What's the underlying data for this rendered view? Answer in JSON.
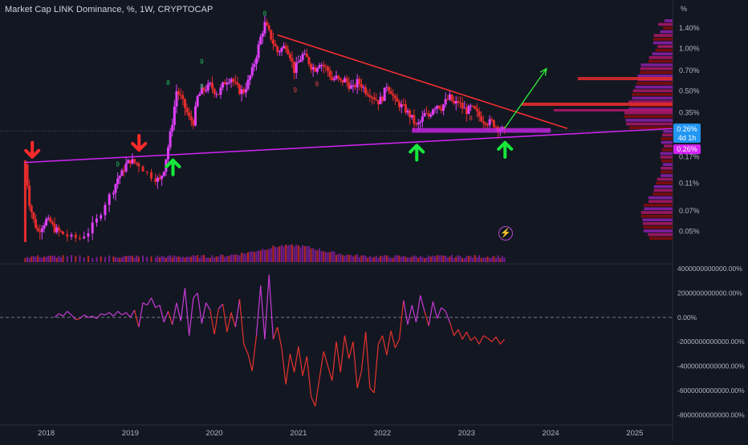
{
  "header": {
    "title": "Market Cap LINK Dominance, %, 1W, CRYPTOCAP"
  },
  "colors": {
    "background": "#131722",
    "up": "#e040fb",
    "down": "#e52c2c",
    "trendline_resistance": "#ff3030",
    "trendline_support": "#d524f5",
    "arrow_down": "#ff2a2a",
    "arrow_up": "#17e83a",
    "projection": "#2ef03c",
    "current_price_label": "#2196f3",
    "support_label": "#d524f5",
    "volume_profile": [
      "#8e1fb0",
      "#b0166a",
      "#8b0a0a"
    ]
  },
  "price_axis": {
    "unit_label": "%",
    "scale": "log",
    "ticks": [
      "1.40%",
      "1.00%",
      "0.70%",
      "0.50%",
      "0.35%",
      "0.17%",
      "0.11%",
      "0.07%",
      "0.05%"
    ],
    "current_price_label": "0.26%",
    "current_price_countdown": "4d 1h",
    "support_price_label": "0.26%"
  },
  "time_axis": {
    "ticks": [
      "2018",
      "2019",
      "2020",
      "2021",
      "2022",
      "2023",
      "2024",
      "2025"
    ]
  },
  "oscillator_axis": {
    "ticks": [
      "4000000000000.00%",
      "2000000000000.00%",
      "0.00%",
      "-2000000000000.00%",
      "-4000000000000.00%",
      "-6000000000000.00%",
      "-8000000000000.00%"
    ]
  },
  "td_counts": [
    {
      "label": "8",
      "color": "green",
      "year": 2020.6,
      "price": 1.72
    },
    {
      "label": "9",
      "color": "green",
      "year": 2019.85,
      "price": 0.78
    },
    {
      "label": "8",
      "color": "green",
      "year": 2019.45,
      "price": 0.55
    },
    {
      "label": "8",
      "color": "green",
      "year": 2019.85,
      "price": 0.52
    },
    {
      "label": "9",
      "color": "green",
      "year": 2018.85,
      "price": 0.145
    },
    {
      "label": "9",
      "color": "red",
      "year": 2020.96,
      "price": 0.49
    },
    {
      "label": "8",
      "color": "red",
      "year": 2021.22,
      "price": 0.54
    },
    {
      "label": "8",
      "color": "red",
      "year": 2023.05,
      "price": 0.31
    }
  ],
  "chart_data": [
    {
      "type": "line",
      "title": "Market Cap LINK Dominance, %, 1W, CRYPTOCAP",
      "xlabel": "",
      "ylabel": "%",
      "x_unit": "year",
      "yscale": "log",
      "ylim": [
        0.042,
        1.75
      ],
      "xlim": [
        2017.45,
        2025.45
      ],
      "grid": false,
      "series": [
        {
          "x": [
            2017.75,
            2017.8,
            2017.85,
            2017.9,
            2017.95,
            2018.0,
            2018.05,
            2018.1,
            2018.15,
            2018.2,
            2018.3,
            2018.4,
            2018.5,
            2018.6,
            2018.7,
            2018.8,
            2018.85,
            2018.9,
            2018.95,
            2019.0,
            2019.05,
            2019.1,
            2019.2,
            2019.3,
            2019.35,
            2019.4,
            2019.45,
            2019.5,
            2019.55,
            2019.6,
            2019.65,
            2019.7,
            2019.75,
            2019.8,
            2019.85,
            2019.9,
            2019.95,
            2020.0,
            2020.05,
            2020.1,
            2020.15,
            2020.2,
            2020.25,
            2020.3,
            2020.35,
            2020.4,
            2020.45,
            2020.5,
            2020.55,
            2020.6,
            2020.65,
            2020.7,
            2020.75,
            2020.8,
            2020.85,
            2020.9,
            2020.95,
            2021.0,
            2021.05,
            2021.1,
            2021.15,
            2021.2,
            2021.25,
            2021.3,
            2021.35,
            2021.4,
            2021.45,
            2021.5,
            2021.55,
            2021.6,
            2021.65,
            2021.7,
            2021.75,
            2021.8,
            2021.85,
            2021.9,
            2021.95,
            2022.0,
            2022.05,
            2022.1,
            2022.15,
            2022.2,
            2022.25,
            2022.3,
            2022.35,
            2022.4,
            2022.45,
            2022.5,
            2022.55,
            2022.6,
            2022.65,
            2022.7,
            2022.75,
            2022.8,
            2022.85,
            2022.9,
            2022.95,
            2023.0,
            2023.05,
            2023.1,
            2023.15,
            2023.2,
            2023.25,
            2023.3,
            2023.35,
            2023.4,
            2023.45
          ],
          "y": [
            0.15,
            0.08,
            0.06,
            0.05,
            0.055,
            0.06,
            0.058,
            0.052,
            0.05,
            0.048,
            0.045,
            0.045,
            0.05,
            0.06,
            0.08,
            0.1,
            0.12,
            0.13,
            0.15,
            0.16,
            0.155,
            0.15,
            0.13,
            0.12,
            0.115,
            0.14,
            0.2,
            0.3,
            0.5,
            0.45,
            0.38,
            0.32,
            0.3,
            0.45,
            0.5,
            0.52,
            0.55,
            0.5,
            0.48,
            0.55,
            0.6,
            0.62,
            0.55,
            0.5,
            0.5,
            0.58,
            0.7,
            0.9,
            1.2,
            1.5,
            1.3,
            1.1,
            0.95,
            1.0,
            1.05,
            0.9,
            0.7,
            0.8,
            0.9,
            0.85,
            0.75,
            0.72,
            0.8,
            0.75,
            0.7,
            0.6,
            0.62,
            0.58,
            0.6,
            0.55,
            0.52,
            0.58,
            0.55,
            0.5,
            0.48,
            0.45,
            0.42,
            0.45,
            0.55,
            0.5,
            0.42,
            0.4,
            0.38,
            0.35,
            0.32,
            0.28,
            0.3,
            0.34,
            0.33,
            0.38,
            0.4,
            0.38,
            0.42,
            0.45,
            0.4,
            0.42,
            0.38,
            0.36,
            0.38,
            0.36,
            0.33,
            0.31,
            0.3,
            0.3,
            0.28,
            0.27,
            0.26
          ]
        }
      ],
      "annotations": {
        "resistance_trendline": {
          "from": [
            2020.75,
            1.25
          ],
          "to": [
            2024.2,
            0.27
          ]
        },
        "support_trendline": {
          "from": [
            2017.75,
            0.155
          ],
          "to": [
            2025.45,
            0.27
          ]
        },
        "support_zone": {
          "x": [
            2022.35,
            2024.0
          ],
          "y": [
            0.252,
            0.272
          ]
        },
        "down_arrows": [
          [
            2017.7,
            0.165
          ],
          [
            2018.97,
            0.185
          ]
        ],
        "up_arrows": [
          [
            2019.45,
            0.165
          ],
          [
            2022.35,
            0.21
          ],
          [
            2023.4,
            0.22
          ]
        ],
        "projection_arrow": {
          "from": [
            2023.45,
            0.27
          ],
          "to": [
            2023.95,
            0.72
          ]
        }
      }
    },
    {
      "type": "line",
      "title": "",
      "xlabel": "",
      "ylabel": "",
      "x_unit": "year",
      "y_unit": "%",
      "ylim": [
        -8700000000000,
        4200000000000
      ],
      "grid": false,
      "zero_line": "dashed",
      "series": [
        {
          "x": [
            2018.1,
            2018.15,
            2018.2,
            2018.25,
            2018.3,
            2018.35,
            2018.4,
            2018.45,
            2018.5,
            2018.55,
            2018.6,
            2018.65,
            2018.7,
            2018.75,
            2018.8,
            2018.85,
            2018.9,
            2018.95,
            2019.0,
            2019.05,
            2019.1,
            2019.15,
            2019.2,
            2019.25,
            2019.3,
            2019.35,
            2019.4,
            2019.45,
            2019.5,
            2019.55,
            2019.6,
            2019.65,
            2019.7,
            2019.75,
            2019.8,
            2019.85,
            2019.9,
            2019.95,
            2020.0,
            2020.05,
            2020.1,
            2020.15,
            2020.2,
            2020.25,
            2020.3,
            2020.35,
            2020.4,
            2020.45,
            2020.5,
            2020.55,
            2020.6,
            2020.65,
            2020.7,
            2020.75,
            2020.8,
            2020.85,
            2020.9,
            2020.95,
            2021.0,
            2021.05,
            2021.1,
            2021.15,
            2021.2,
            2021.25,
            2021.3,
            2021.35,
            2021.4,
            2021.45,
            2021.5,
            2021.55,
            2021.6,
            2021.65,
            2021.7,
            2021.75,
            2021.8,
            2021.85,
            2021.9,
            2021.95,
            2022.0,
            2022.05,
            2022.1,
            2022.15,
            2022.2,
            2022.25,
            2022.3,
            2022.35,
            2022.4,
            2022.45,
            2022.5,
            2022.55,
            2022.6,
            2022.65,
            2022.7,
            2022.75,
            2022.8,
            2022.85,
            2022.9,
            2022.95,
            2023.0,
            2023.05,
            2023.1,
            2023.15,
            2023.2,
            2023.25,
            2023.3,
            2023.35,
            2023.4,
            2023.45
          ],
          "y": [
            0,
            300000000000,
            100000000000,
            500000000000,
            200000000000,
            -200000000000,
            -100000000000,
            200000000000,
            0,
            100000000000,
            -100000000000,
            300000000000,
            200000000000,
            400000000000,
            100000000000,
            500000000000,
            200000000000,
            400000000000,
            0,
            600000000000,
            -800000000000,
            1200000000000,
            1000000000000,
            1600000000000,
            800000000000,
            1000000000000,
            -400000000000,
            500000000000,
            -600000000000,
            1200000000000,
            -300000000000,
            2400000000000,
            -1500000000000,
            1600000000000,
            2000000000000,
            -500000000000,
            1200000000000,
            600000000000,
            -1400000000000,
            700000000000,
            1100000000000,
            -1200000000000,
            400000000000,
            -800000000000,
            1500000000000,
            -2200000000000,
            -3000000000000,
            -4400000000000,
            -1500000000000,
            2600000000000,
            -1800000000000,
            3500000000000,
            -1800000000000,
            -800000000000,
            -2500000000000,
            -5500000000000,
            -3000000000000,
            -4500000000000,
            -2400000000000,
            -4800000000000,
            -3200000000000,
            -6500000000000,
            -7300000000000,
            -5000000000000,
            -2800000000000,
            -4000000000000,
            -5200000000000,
            -2000000000000,
            -4500000000000,
            -1500000000000,
            -3400000000000,
            -2000000000000,
            -5800000000000,
            -4400000000000,
            -1200000000000,
            -5800000000000,
            -6200000000000,
            -2200000000000,
            -1500000000000,
            -3100000000000,
            -1100000000000,
            -2500000000000,
            -1800000000000,
            1400000000000,
            -600000000000,
            1000000000000,
            -400000000000,
            1800000000000,
            500000000000,
            -700000000000,
            1300000000000,
            -100000000000,
            800000000000,
            500000000000,
            -400000000000,
            -1500000000000,
            -1000000000000,
            -1800000000000,
            -1200000000000,
            -1900000000000,
            -1600000000000,
            -2200000000000,
            -1500000000000,
            -1700000000000,
            -2000000000000,
            -1600000000000,
            -2200000000000,
            -1800000000000
          ]
        }
      ]
    }
  ]
}
